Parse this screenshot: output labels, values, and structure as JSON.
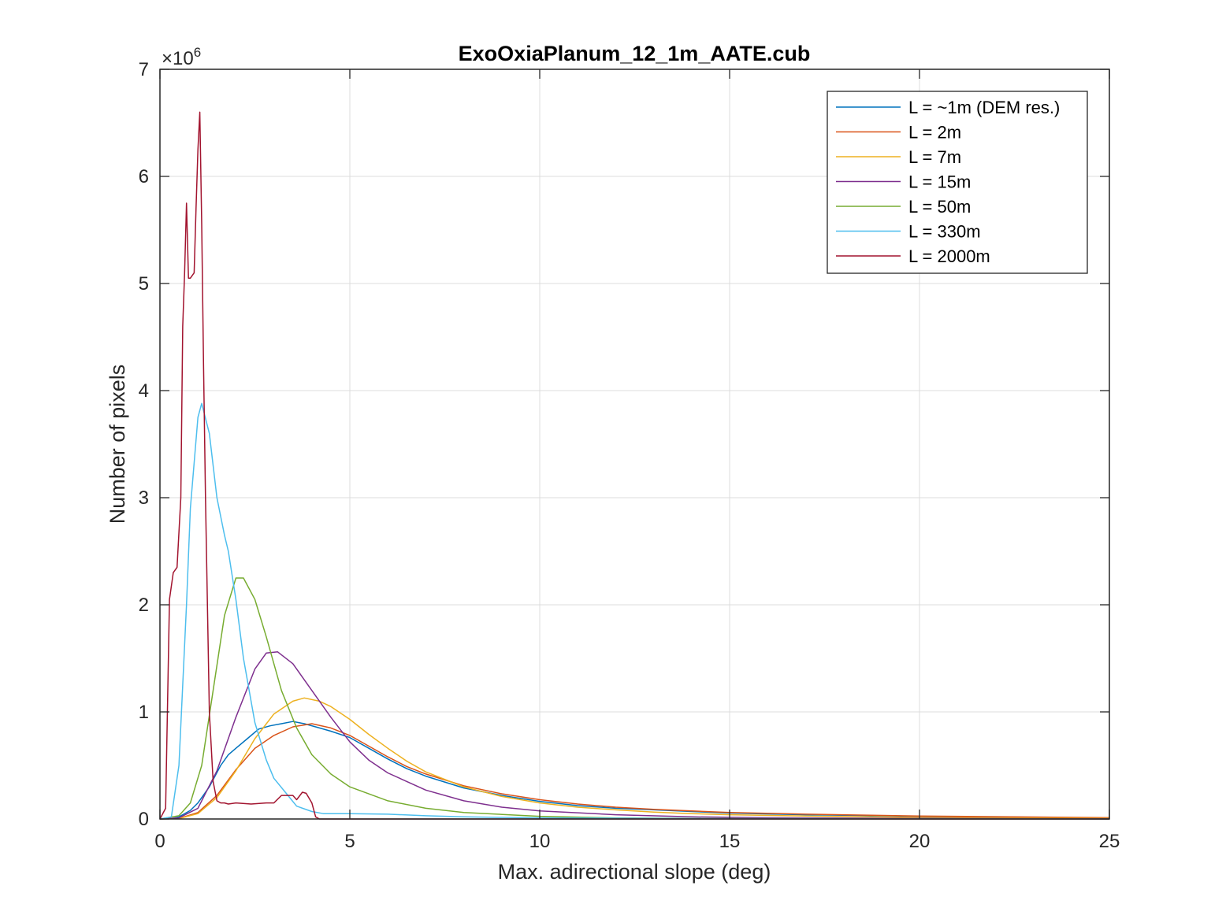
{
  "chart_data": {
    "type": "line",
    "title": "ExoOxiaPlanum_12_1m_AATE.cub",
    "xlabel": "Max. adirectional slope (deg)",
    "ylabel": "Number of pixels",
    "xlim": [
      0,
      25
    ],
    "ylim": [
      0,
      7
    ],
    "y_exponent_base": "×10",
    "y_exponent_power": "6",
    "x_ticks": [
      "0",
      "5",
      "10",
      "15",
      "20",
      "25"
    ],
    "y_ticks": [
      "0",
      "1",
      "2",
      "3",
      "4",
      "5",
      "6",
      "7"
    ],
    "grid": true,
    "legend_position": "top-right",
    "series": [
      {
        "name": "L = ~1m (DEM res.)",
        "color": "#0072BD",
        "x": [
          0,
          0.3,
          0.5,
          0.8,
          1.0,
          1.3,
          1.6,
          1.8,
          2.0,
          2.3,
          2.6,
          2.9,
          3.2,
          3.5,
          3.8,
          4.1,
          4.5,
          5.0,
          5.5,
          6.0,
          6.5,
          7.0,
          8.0,
          9.0,
          10.0,
          11.0,
          12.0,
          13.0,
          14.0,
          15.0,
          17.0,
          20.0,
          25.0
        ],
        "y": [
          0,
          0.003,
          0.02,
          0.08,
          0.15,
          0.3,
          0.5,
          0.6,
          0.66,
          0.75,
          0.84,
          0.87,
          0.89,
          0.91,
          0.89,
          0.86,
          0.82,
          0.76,
          0.66,
          0.56,
          0.47,
          0.4,
          0.29,
          0.22,
          0.165,
          0.125,
          0.1,
          0.085,
          0.07,
          0.055,
          0.04,
          0.025,
          0.01
        ]
      },
      {
        "name": "L = 2m",
        "color": "#D95319",
        "x": [
          0,
          0.5,
          1.0,
          1.5,
          2.0,
          2.5,
          3.0,
          3.5,
          4.0,
          4.5,
          5.0,
          5.5,
          6.0,
          6.5,
          7.0,
          8.0,
          9.0,
          10.0,
          11.0,
          12.0,
          13.0,
          14.0,
          15.0,
          17.0,
          20.0,
          25.0
        ],
        "y": [
          0,
          0.005,
          0.06,
          0.22,
          0.46,
          0.66,
          0.78,
          0.86,
          0.89,
          0.85,
          0.78,
          0.68,
          0.58,
          0.49,
          0.42,
          0.31,
          0.235,
          0.18,
          0.14,
          0.11,
          0.09,
          0.075,
          0.06,
          0.045,
          0.028,
          0.012
        ]
      },
      {
        "name": "L = 7m",
        "color": "#EDB120",
        "x": [
          0,
          0.5,
          1.0,
          1.5,
          2.0,
          2.5,
          3.0,
          3.5,
          3.8,
          4.2,
          4.5,
          5.0,
          5.5,
          6.0,
          6.5,
          7.0,
          8.0,
          9.0,
          10.0,
          11.0,
          12.0,
          13.0,
          14.0,
          15.0,
          17.0,
          20.0,
          25.0
        ],
        "y": [
          0,
          0.004,
          0.05,
          0.2,
          0.45,
          0.75,
          0.98,
          1.1,
          1.13,
          1.1,
          1.05,
          0.93,
          0.79,
          0.66,
          0.54,
          0.44,
          0.3,
          0.21,
          0.15,
          0.11,
          0.085,
          0.065,
          0.05,
          0.04,
          0.028,
          0.015,
          0.005
        ]
      },
      {
        "name": "L = 15m",
        "color": "#7E2F8E",
        "x": [
          0,
          0.5,
          1.0,
          1.5,
          2.0,
          2.5,
          2.8,
          3.1,
          3.5,
          4.0,
          4.5,
          5.0,
          5.5,
          6.0,
          7.0,
          8.0,
          9.0,
          10.0,
          12.0,
          14.0,
          16.0,
          20.0,
          25.0
        ],
        "y": [
          0,
          0.01,
          0.1,
          0.45,
          0.95,
          1.4,
          1.55,
          1.56,
          1.45,
          1.2,
          0.95,
          0.72,
          0.55,
          0.43,
          0.27,
          0.17,
          0.11,
          0.075,
          0.04,
          0.02,
          0.012,
          0.005,
          0.001
        ]
      },
      {
        "name": "L = 50m",
        "color": "#77AC30",
        "x": [
          0,
          0.5,
          0.8,
          1.1,
          1.4,
          1.7,
          2.0,
          2.2,
          2.5,
          2.8,
          3.2,
          3.6,
          4.0,
          4.5,
          5.0,
          6.0,
          7.0,
          8.0,
          10.0,
          12.0,
          15.0,
          20.0,
          25.0
        ],
        "y": [
          0,
          0.03,
          0.15,
          0.5,
          1.2,
          1.9,
          2.25,
          2.25,
          2.05,
          1.7,
          1.2,
          0.85,
          0.6,
          0.42,
          0.3,
          0.17,
          0.1,
          0.06,
          0.025,
          0.01,
          0.004,
          0.001,
          0
        ]
      },
      {
        "name": "L = 330m",
        "color": "#4DBEEE",
        "x": [
          0,
          0.3,
          0.5,
          0.7,
          0.8,
          1.0,
          1.1,
          1.3,
          1.5,
          1.7,
          1.8,
          2.0,
          2.2,
          2.5,
          2.8,
          3.0,
          3.3,
          3.6,
          4.0,
          4.3,
          5.0,
          6.0,
          7.0,
          8.0,
          10.0,
          15.0,
          25.0
        ],
        "y": [
          0,
          0.02,
          0.5,
          2.0,
          2.9,
          3.75,
          3.88,
          3.6,
          3.0,
          2.65,
          2.5,
          2.05,
          1.5,
          0.9,
          0.55,
          0.38,
          0.25,
          0.12,
          0.07,
          0.05,
          0.05,
          0.045,
          0.03,
          0.02,
          0.01,
          0.003,
          0
        ]
      },
      {
        "name": "L = 2000m",
        "color": "#A2142F",
        "x": [
          0,
          0.15,
          0.25,
          0.35,
          0.45,
          0.55,
          0.6,
          0.65,
          0.7,
          0.75,
          0.8,
          0.9,
          0.95,
          1.0,
          1.05,
          1.1,
          1.15,
          1.2,
          1.3,
          1.4,
          1.5,
          1.6,
          1.7,
          1.8,
          2.0,
          2.4,
          2.8,
          3.0,
          3.2,
          3.5,
          3.6,
          3.75,
          3.85,
          4.0,
          4.1,
          4.2,
          25.0
        ],
        "y": [
          0,
          0.1,
          2.05,
          2.3,
          2.35,
          3.0,
          4.6,
          5.1,
          5.75,
          5.05,
          5.05,
          5.1,
          5.7,
          6.25,
          6.6,
          5.55,
          4.2,
          3.0,
          1.0,
          0.35,
          0.17,
          0.15,
          0.15,
          0.14,
          0.15,
          0.14,
          0.15,
          0.15,
          0.22,
          0.22,
          0.18,
          0.25,
          0.24,
          0.15,
          0.02,
          0,
          0
        ]
      }
    ]
  }
}
